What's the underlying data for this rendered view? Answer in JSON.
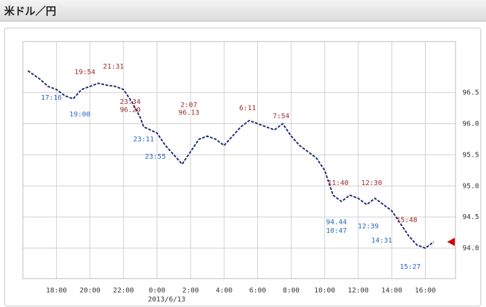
{
  "title": "米ドル／円",
  "chart_data": {
    "type": "line",
    "x": [
      -7.7,
      -7,
      -6.5,
      -6,
      -5.5,
      -5,
      -4.5,
      -4,
      -3.5,
      -3,
      -2.5,
      -2,
      -1.5,
      -1,
      -0.8,
      0,
      0.5,
      1,
      1.5,
      2,
      2.5,
      3,
      3.5,
      4,
      4.5,
      5,
      5.5,
      6,
      6.5,
      7,
      7.5,
      8,
      8.5,
      9,
      9.5,
      10,
      10.5,
      11,
      11.5,
      12,
      12.5,
      13,
      13.5,
      14,
      14.5,
      15,
      15.5,
      16,
      16.5
    ],
    "series": [
      {
        "color": "#1a2a6c",
        "values": [
          96.85,
          96.72,
          96.6,
          96.55,
          96.45,
          96.4,
          96.55,
          96.6,
          96.65,
          96.62,
          96.6,
          96.55,
          96.35,
          96.1,
          95.95,
          95.85,
          95.65,
          95.5,
          95.35,
          95.55,
          95.75,
          95.8,
          95.75,
          95.65,
          95.8,
          95.95,
          96.05,
          96.0,
          95.95,
          95.9,
          96.0,
          95.8,
          95.65,
          95.55,
          95.45,
          95.25,
          94.85,
          94.75,
          94.85,
          94.8,
          94.7,
          94.8,
          94.7,
          94.6,
          94.4,
          94.2,
          94.05,
          94.0,
          94.1
        ]
      }
    ],
    "xlim": [
      -8,
      17.8
    ],
    "xticks": [
      {
        "value": -6,
        "label": "18:00"
      },
      {
        "value": -4,
        "label": "20:00"
      },
      {
        "value": -2,
        "label": "22:00"
      },
      {
        "value": 0,
        "label": "0:00"
      },
      {
        "value": 2,
        "label": "2:00"
      },
      {
        "value": 4,
        "label": "4:00"
      },
      {
        "value": 6,
        "label": "6:00"
      },
      {
        "value": 8,
        "label": "8:00"
      },
      {
        "value": 10,
        "label": "10:00"
      },
      {
        "value": 12,
        "label": "12:00"
      },
      {
        "value": 14,
        "label": "14:00"
      },
      {
        "value": 16,
        "label": "16:00"
      }
    ],
    "date_label": "2013/6/13",
    "ylim": [
      93.51,
      97.32
    ],
    "yticks": [
      {
        "value": 94,
        "label": "94.0"
      },
      94.5,
      {
        "value": 95,
        "label": "95.0"
      },
      95.5,
      {
        "value": 96,
        "label": "96.0"
      },
      96.5
    ],
    "grid": true,
    "high_color": "#a0282a",
    "low_color": "#2a64c0",
    "annotations": [
      {
        "x": -4.3,
        "y": 96.83,
        "text": "19:54",
        "kind": "high"
      },
      {
        "x": -2.6,
        "y": 96.92,
        "text": "21:31",
        "kind": "high"
      },
      {
        "x": -1.6,
        "y": 96.35,
        "text": "23:34",
        "kind": "high"
      },
      {
        "x": -1.6,
        "y": 96.22,
        "text": "96.20",
        "kind": "high"
      },
      {
        "x": 1.9,
        "y": 96.3,
        "text": "2:07",
        "kind": "high"
      },
      {
        "x": 1.9,
        "y": 96.18,
        "text": "96.13",
        "kind": "high"
      },
      {
        "x": 5.4,
        "y": 96.25,
        "text": "6:11",
        "kind": "high"
      },
      {
        "x": 7.4,
        "y": 96.12,
        "text": "7:54",
        "kind": "high"
      },
      {
        "x": 10.8,
        "y": 95.05,
        "text": "11:40",
        "kind": "high"
      },
      {
        "x": 12.8,
        "y": 95.05,
        "text": "12:30",
        "kind": "high"
      },
      {
        "x": 14.9,
        "y": 94.45,
        "text": "15:48",
        "kind": "high"
      },
      {
        "x": -6.3,
        "y": 96.42,
        "text": "17:16",
        "kind": "low"
      },
      {
        "x": -4.6,
        "y": 96.15,
        "text": "19:00",
        "kind": "low"
      },
      {
        "x": -0.8,
        "y": 95.75,
        "text": "23:11",
        "kind": "low"
      },
      {
        "x": -0.1,
        "y": 95.47,
        "text": "23:55",
        "kind": "low"
      },
      {
        "x": 10.7,
        "y": 94.42,
        "text": "94.44",
        "kind": "low"
      },
      {
        "x": 10.7,
        "y": 94.28,
        "text": "10:47",
        "kind": "low"
      },
      {
        "x": 12.6,
        "y": 94.35,
        "text": "12:39",
        "kind": "low"
      },
      {
        "x": 13.4,
        "y": 94.12,
        "text": "14:31",
        "kind": "low"
      },
      {
        "x": 15.1,
        "y": 93.7,
        "text": "15:27",
        "kind": "low"
      }
    ]
  }
}
